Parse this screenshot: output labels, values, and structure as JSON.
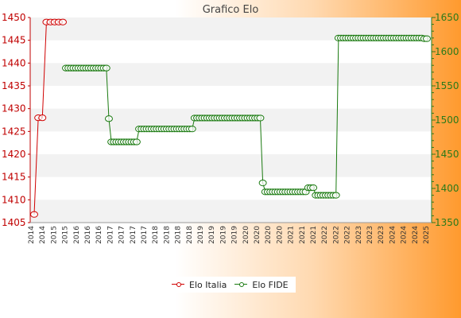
{
  "chart_data": {
    "type": "line",
    "title": "Grafico Elo",
    "x_axis_labels_note": "",
    "y_left": {
      "min": 1405,
      "max": 1450,
      "ticks": [
        1405,
        1410,
        1415,
        1420,
        1425,
        1430,
        1435,
        1440,
        1445,
        1450
      ]
    },
    "y_right": {
      "min": 1350,
      "max": 1650,
      "ticks": [
        1350,
        1400,
        1450,
        1500,
        1550,
        1600,
        1650
      ]
    },
    "series": [
      {
        "name": "Elo Italia",
        "axis": "left",
        "color": "#d00000",
        "values": [
          1406.8,
          1428,
          1428,
          1449,
          1449,
          1449,
          1449,
          1449
        ]
      },
      {
        "name": "Elo FIDE",
        "axis": "right",
        "color": "#1a7a10",
        "values": [
          1576,
          1576,
          1576,
          1576,
          1576,
          1576,
          1576,
          1576,
          1576,
          1576,
          1576,
          1576,
          1576,
          1576,
          1576,
          1576,
          1576,
          1502,
          1468,
          1468,
          1468,
          1468,
          1468,
          1468,
          1468,
          1468,
          1468,
          1468,
          1468,
          1487,
          1487,
          1487,
          1487,
          1487,
          1487,
          1487,
          1487,
          1487,
          1487,
          1487,
          1487,
          1487,
          1487,
          1487,
          1487,
          1487,
          1487,
          1487,
          1487,
          1487,
          1487,
          1503,
          1503,
          1503,
          1503,
          1503,
          1503,
          1503,
          1503,
          1503,
          1503,
          1503,
          1503,
          1503,
          1503,
          1503,
          1503,
          1503,
          1503,
          1503,
          1503,
          1503,
          1503,
          1503,
          1503,
          1503,
          1503,
          1503,
          1408,
          1395,
          1395,
          1395,
          1395,
          1395,
          1395,
          1395,
          1395,
          1395,
          1395,
          1395,
          1395,
          1395,
          1395,
          1395,
          1395,
          1395,
          1401,
          1401,
          1401,
          1390,
          1390,
          1390,
          1390,
          1390,
          1390,
          1390,
          1390,
          1390,
          1620,
          1620,
          1620,
          1620,
          1620,
          1620,
          1620,
          1620,
          1620,
          1620,
          1620,
          1620,
          1620,
          1620,
          1620,
          1620,
          1620,
          1620,
          1620,
          1620,
          1620,
          1620,
          1620,
          1620,
          1620,
          1620,
          1620,
          1620,
          1620,
          1620,
          1620,
          1620,
          1620,
          1620,
          1619,
          1619
        ]
      }
    ],
    "legend": {
      "position": "bottom-center",
      "entries": [
        "Elo Italia",
        "Elo FIDE"
      ]
    },
    "x_tick_labels": [
      "2014",
      "2014",
      "2015",
      "2015",
      "2016",
      "2016",
      "2016",
      "2017",
      "2017",
      "2017",
      "2017",
      "2018",
      "2018",
      "2018",
      "2018",
      "2019",
      "2019",
      "2019",
      "2019",
      "2020",
      "2020",
      "2020",
      "2020",
      "2021",
      "2021",
      "2021",
      "2022",
      "2022",
      "2022",
      "2023",
      "2023",
      "2023",
      "2024",
      "2024",
      "2024",
      "2025"
    ],
    "grid": true,
    "colors": {
      "left_axis": "#c00000",
      "right_axis": "#2a7a1a",
      "band": "#f2f2f2"
    }
  }
}
